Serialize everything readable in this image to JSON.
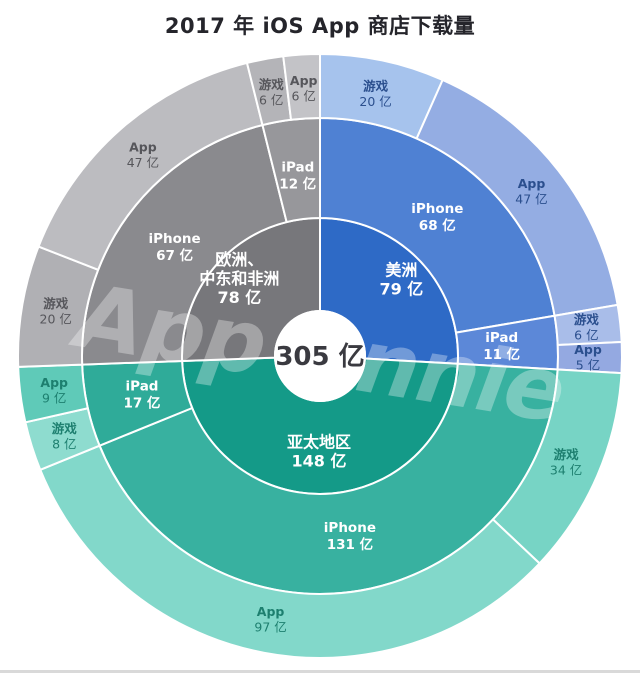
{
  "chart_data": {
    "type": "sunburst",
    "title": "2017 年 iOS App 商店下载量",
    "unit": "亿",
    "total": 305,
    "center_label": "305 亿",
    "watermark": "App Annie",
    "layout_hints": {
      "rings": [
        "region",
        "device",
        "category"
      ],
      "start_angle_deg": 0,
      "direction": "clockwise",
      "region_order_note": "美洲 starts at 12 o'clock, then 亚太地区, then 欧洲、中东和非洲"
    },
    "regions": [
      {
        "id": "americas",
        "name": "美洲",
        "value": 79,
        "value_label": "79 亿",
        "fill": "#2e6ac6",
        "outer_label_color": "#2b4f8e",
        "label_radius": 112,
        "devices": [
          {
            "id": "iphone",
            "name": "iPhone",
            "value": 68,
            "value_label": "68 亿",
            "fill": "#4f81d3",
            "categories": [
              {
                "id": "games",
                "name": "游戏",
                "value": 20,
                "value_label": "20 亿",
                "fill": "#a6c3ed"
              },
              {
                "id": "apps",
                "name": "App",
                "value": 47,
                "value_label": "47 亿",
                "fill": "#94ade3"
              }
            ]
          },
          {
            "id": "ipad",
            "name": "iPad",
            "value": 11,
            "value_label": "11 亿",
            "fill": "#5c88d8",
            "categories": [
              {
                "id": "games",
                "name": "游戏",
                "value": 6,
                "value_label": "6 亿",
                "fill": "#a9bde9"
              },
              {
                "id": "apps",
                "name": "App",
                "value": 5,
                "value_label": "5 亿",
                "fill": "#94a9e1"
              }
            ]
          }
        ]
      },
      {
        "id": "asia-pacific",
        "name": "亚太地区",
        "value": 148,
        "value_label": "148 亿",
        "fill": "#149a88",
        "outer_label_color": "#1d7f6f",
        "label_radius": 95,
        "devices": [
          {
            "id": "iphone",
            "name": "iPhone",
            "value": 131,
            "value_label": "131 亿",
            "fill": "#38b1a0",
            "categories": [
              {
                "id": "games",
                "name": "游戏",
                "value": 34,
                "value_label": "34 亿",
                "fill": "#77d4c5"
              },
              {
                "id": "apps",
                "name": "App",
                "value": 97,
                "value_label": "97 亿",
                "fill": "#82d8ca"
              }
            ]
          },
          {
            "id": "ipad",
            "name": "iPad",
            "value": 17,
            "value_label": "17 亿",
            "fill": "#2fab99",
            "categories": [
              {
                "id": "games",
                "name": "游戏",
                "value": 8,
                "value_label": "8 亿",
                "fill": "#8edccf"
              },
              {
                "id": "apps",
                "name": "App",
                "value": 9,
                "value_label": "9 亿",
                "fill": "#5fcab8"
              }
            ]
          }
        ]
      },
      {
        "id": "emea",
        "name": "欧洲、中东和非洲",
        "value": 78,
        "value_label": "78 亿",
        "label_lines": [
          "欧洲、",
          "中东和非洲",
          "78 亿"
        ],
        "fill": "#77777b",
        "outer_label_color": "#56565b",
        "label_radius": 112,
        "devices": [
          {
            "id": "iphone",
            "name": "iPhone",
            "value": 67,
            "value_label": "67 亿",
            "fill": "#8a8a8e",
            "categories": [
              {
                "id": "games",
                "name": "游戏",
                "value": 20,
                "value_label": "20 亿",
                "fill": "#b0b0b4"
              },
              {
                "id": "apps",
                "name": "App",
                "value": 47,
                "value_label": "47 亿",
                "fill": "#bcbcc0"
              }
            ]
          },
          {
            "id": "ipad",
            "name": "iPad",
            "value": 12,
            "value_label": "12 亿",
            "fill": "#97979b",
            "categories": [
              {
                "id": "games",
                "name": "游戏",
                "value": 6,
                "value_label": "6 亿",
                "fill": "#b4b4b8"
              },
              {
                "id": "apps",
                "name": "App",
                "value": 6,
                "value_label": "6 亿",
                "fill": "#c3c3c7"
              }
            ]
          }
        ]
      }
    ],
    "colors": {
      "background": "#ffffff",
      "divider_stroke": "#ffffff",
      "center_text": "#3a3a40",
      "title_text": "#25252b",
      "device_label_text": "#ffffff",
      "region_label_text": "#ffffff",
      "watermark_text": "#ffffff"
    }
  }
}
